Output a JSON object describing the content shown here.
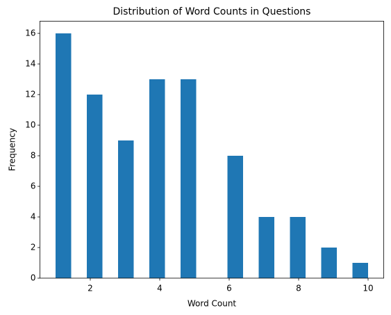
{
  "chart_data": {
    "type": "histogram",
    "title": "Distribution of Word Counts in Questions",
    "xlabel": "Word Count",
    "ylabel": "Frequency",
    "bins": [
      1,
      1.45,
      1.9,
      2.35,
      2.8,
      3.25,
      3.7,
      4.15,
      4.6,
      5.05,
      5.5,
      5.95,
      6.4,
      6.85,
      7.3,
      7.75,
      8.2,
      8.65,
      9.1,
      9.55,
      10
    ],
    "values": [
      16,
      0,
      12,
      0,
      9,
      0,
      13,
      0,
      13,
      0,
      0,
      8,
      0,
      4,
      0,
      4,
      0,
      2,
      0,
      1
    ],
    "color": "#1f77b4",
    "xlim": [
      0.55,
      10.45
    ],
    "xticks": [
      2,
      4,
      6,
      8,
      10
    ],
    "ylim": [
      0,
      16.8
    ],
    "yticks": [
      0,
      2,
      4,
      6,
      8,
      10,
      12,
      14,
      16
    ]
  }
}
